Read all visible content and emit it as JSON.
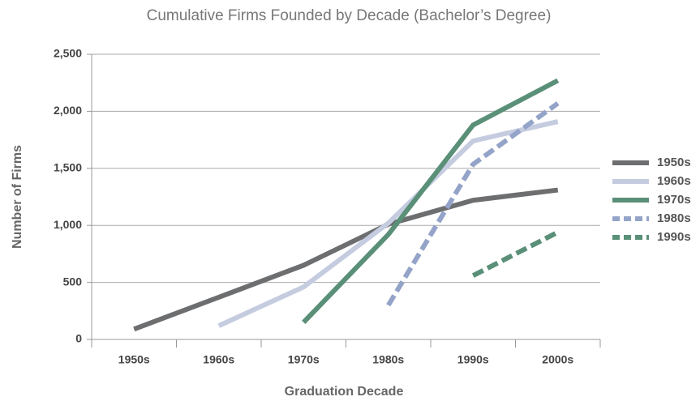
{
  "chart_data": {
    "type": "line",
    "title": "Cumulative Firms Founded by Decade (Bachelor’s Degree)",
    "x_label": "Graduation Decade",
    "y_label": "Number of Firms",
    "categories": [
      "1950s",
      "1960s",
      "1970s",
      "1980s",
      "1990s",
      "2000s"
    ],
    "series": [
      {
        "name": "1950s",
        "color": "#6d6e70",
        "dashed": false,
        "values": [
          90,
          370,
          650,
          1010,
          1220,
          1310
        ]
      },
      {
        "name": "1960s",
        "color": "#c5cce0",
        "dashed": false,
        "values": [
          null,
          120,
          460,
          1020,
          1740,
          1910
        ]
      },
      {
        "name": "1970s",
        "color": "#5a8f78",
        "dashed": false,
        "values": [
          null,
          null,
          150,
          920,
          1880,
          2270
        ]
      },
      {
        "name": "1980s",
        "color": "#94a3c8",
        "dashed": true,
        "values": [
          null,
          null,
          null,
          300,
          1535,
          2070
        ]
      },
      {
        "name": "1990s",
        "color": "#5a8f78",
        "dashed": true,
        "values": [
          null,
          null,
          null,
          null,
          560,
          940
        ]
      }
    ],
    "ylim": [
      0,
      2500
    ],
    "yticks": [
      0,
      500,
      {
        "value": 1000,
        "label": "1,000"
      },
      {
        "value": 1500,
        "label": "1,500"
      },
      {
        "value": 2000,
        "label": "2,000"
      },
      {
        "value": 2500,
        "label": "2,500"
      }
    ],
    "grid": true,
    "legend": "right"
  }
}
